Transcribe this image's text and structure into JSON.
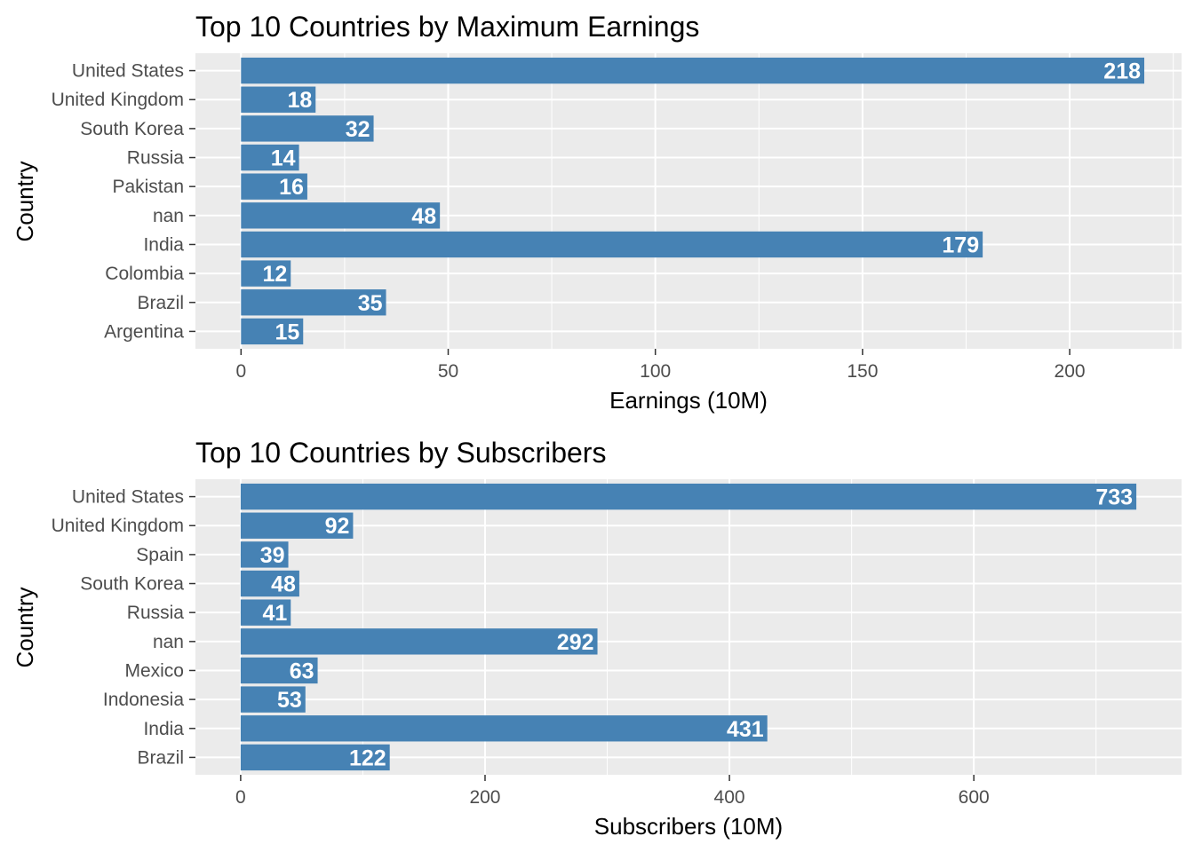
{
  "chart_data": [
    {
      "type": "bar",
      "orientation": "horizontal",
      "title": "Top 10 Countries by Maximum Earnings",
      "xlabel": "Earnings (10M)",
      "ylabel": "Country",
      "categories": [
        "United States",
        "United Kingdom",
        "South Korea",
        "Russia",
        "Pakistan",
        "nan",
        "India",
        "Colombia",
        "Brazil",
        "Argentina"
      ],
      "values": [
        218,
        18,
        32,
        14,
        16,
        48,
        179,
        12,
        35,
        15
      ],
      "data_labels": [
        "218",
        "18",
        "32",
        "14",
        "16",
        "48",
        "179",
        "12",
        "35",
        "15"
      ],
      "xlim": [
        -11,
        227
      ],
      "major_ticks": [
        0,
        50,
        100,
        150,
        200
      ],
      "minor_ticks": [
        25,
        75,
        125,
        175,
        225
      ],
      "tick_labels": [
        "0",
        "50",
        "100",
        "150",
        "200"
      ],
      "grid": true,
      "bar_color": "#4682B4",
      "panel_color": "#EBEBEB"
    },
    {
      "type": "bar",
      "orientation": "horizontal",
      "title": "Top 10 Countries by Subscribers",
      "xlabel": "Subscribers (10M)",
      "ylabel": "Country",
      "categories": [
        "United States",
        "United Kingdom",
        "Spain",
        "South Korea",
        "Russia",
        "nan",
        "Mexico",
        "Indonesia",
        "India",
        "Brazil"
      ],
      "values": [
        733,
        92,
        39,
        48,
        41,
        292,
        63,
        53,
        431,
        122
      ],
      "data_labels": [
        "733",
        "92",
        "39",
        "48",
        "41",
        "292",
        "63",
        "53",
        "431",
        "122"
      ],
      "xlim": [
        -37,
        770
      ],
      "major_ticks": [
        0,
        200,
        400,
        600
      ],
      "minor_ticks": [
        100,
        300,
        500,
        700
      ],
      "tick_labels": [
        "0",
        "200",
        "400",
        "600"
      ],
      "grid": true,
      "bar_color": "#4682B4",
      "panel_color": "#EBEBEB"
    }
  ]
}
